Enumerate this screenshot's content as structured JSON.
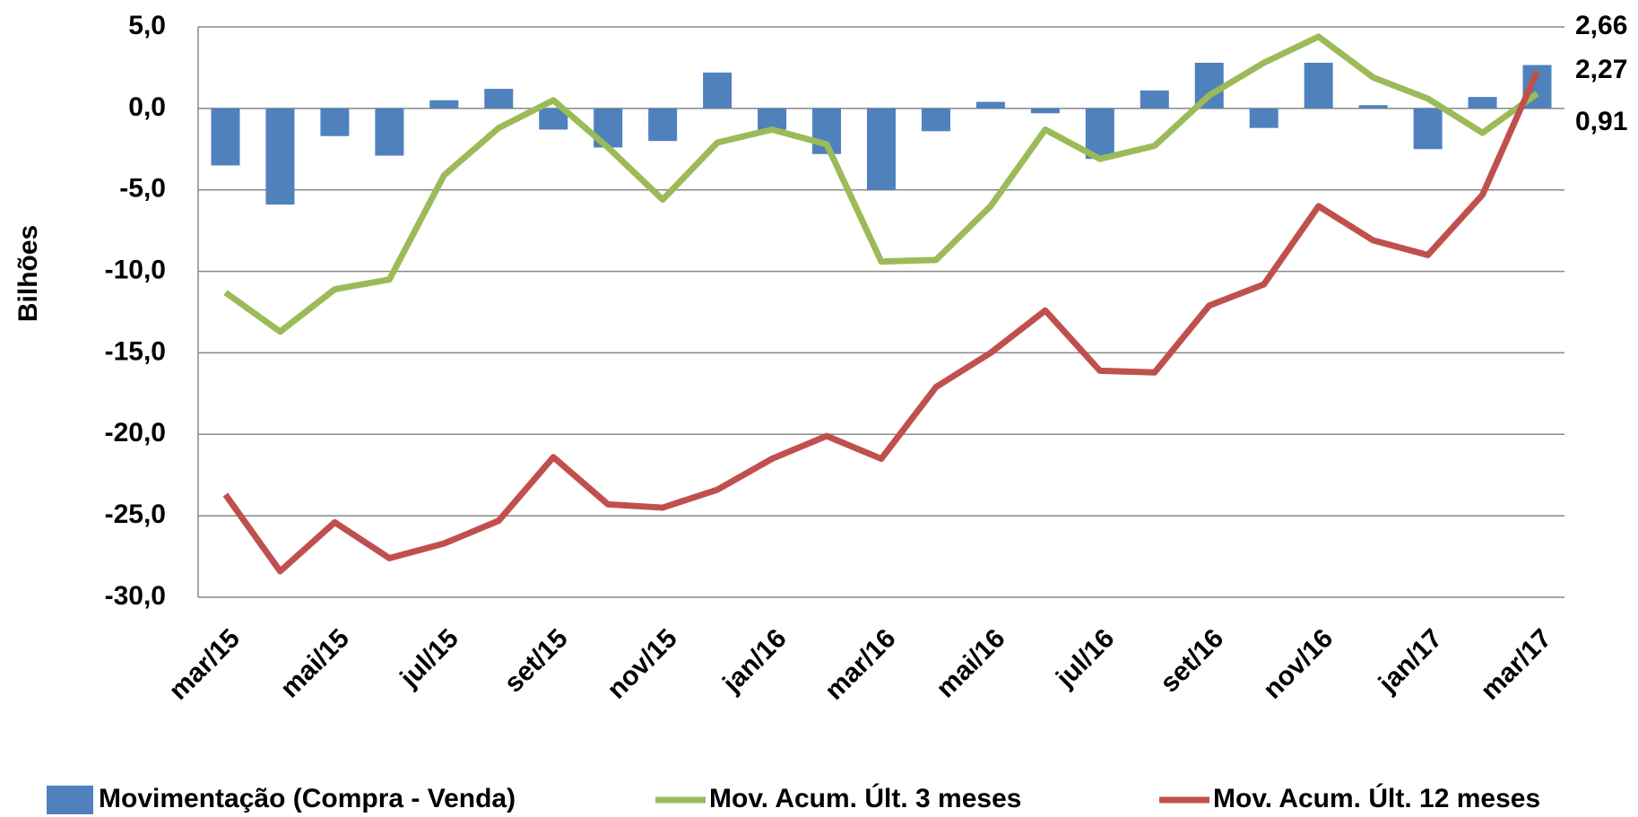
{
  "chart_data": {
    "type": "bar-line",
    "y_label": "Bilhões",
    "categories": [
      "mar/15",
      null,
      "mai/15",
      null,
      "jul/15",
      null,
      "set/15",
      null,
      "nov/15",
      null,
      "jan/16",
      null,
      "mar/16",
      null,
      "mai/16",
      null,
      "jul/16",
      null,
      "set/16",
      null,
      "nov/16",
      null,
      "jan/17",
      null,
      "mar/17"
    ],
    "ylim": [
      -30,
      5
    ],
    "yticks": [
      {
        "value": 5,
        "label": "5,0"
      },
      {
        "value": 0,
        "label": "0,0"
      },
      {
        "value": -5,
        "label": "-5,0"
      },
      {
        "value": -10,
        "label": "-10,0"
      },
      {
        "value": -15,
        "label": "-15,0"
      },
      {
        "value": -20,
        "label": "-20,0"
      },
      {
        "value": -25,
        "label": "-25,0"
      },
      {
        "value": -30,
        "label": "-30,0"
      }
    ],
    "grid": true,
    "series": [
      {
        "name": "Movimentação (Compra - Venda)",
        "type": "bar",
        "color": "#4f81bd",
        "label_color": "#4a7ebb",
        "values": [
          -3.5,
          -5.9,
          -1.7,
          -2.9,
          0.5,
          1.2,
          -1.3,
          -2.4,
          -2.0,
          2.2,
          -1.3,
          -2.8,
          -5.0,
          -1.4,
          0.4,
          -0.3,
          -3.1,
          1.1,
          2.8,
          -1.2,
          2.8,
          0.2,
          -2.5,
          0.7,
          2.66
        ],
        "value_labels": [
          null,
          null,
          null,
          null,
          null,
          null,
          null,
          null,
          null,
          null,
          null,
          null,
          null,
          null,
          null,
          null,
          null,
          null,
          null,
          null,
          null,
          null,
          null,
          null,
          "2,66"
        ]
      },
      {
        "name": "Mov. Acum. Últ. 3 meses",
        "type": "line",
        "color": "#9bbb59",
        "label_color": "#77933c",
        "values": [
          -11.3,
          -13.7,
          -11.1,
          -10.5,
          -4.1,
          -1.2,
          0.5,
          -2.4,
          -5.6,
          -2.1,
          -1.3,
          -2.2,
          -9.4,
          -9.3,
          -6.0,
          -1.3,
          -3.1,
          -2.3,
          0.8,
          2.8,
          4.4,
          1.9,
          0.6,
          -1.5,
          0.91
        ],
        "value_labels": [
          null,
          null,
          null,
          null,
          null,
          null,
          null,
          null,
          null,
          null,
          null,
          null,
          null,
          null,
          null,
          null,
          null,
          null,
          null,
          null,
          null,
          null,
          null,
          null,
          "0,91"
        ]
      },
      {
        "name": "Mov. Acum. Últ. 12 meses",
        "type": "line",
        "color": "#c0504d",
        "label_color": "#c00000",
        "values": [
          -23.7,
          -28.4,
          -25.4,
          -27.6,
          -26.7,
          -25.3,
          -21.4,
          -24.3,
          -24.5,
          -23.4,
          -21.5,
          -20.1,
          -21.5,
          -17.1,
          -15.0,
          -12.4,
          -16.1,
          -16.2,
          -12.1,
          -10.8,
          -6.0,
          -8.1,
          -9.0,
          -5.3,
          2.27
        ],
        "value_labels": [
          null,
          null,
          null,
          null,
          null,
          null,
          null,
          null,
          null,
          null,
          null,
          null,
          null,
          null,
          null,
          null,
          null,
          null,
          null,
          null,
          null,
          null,
          null,
          null,
          "2,27"
        ]
      }
    ]
  }
}
